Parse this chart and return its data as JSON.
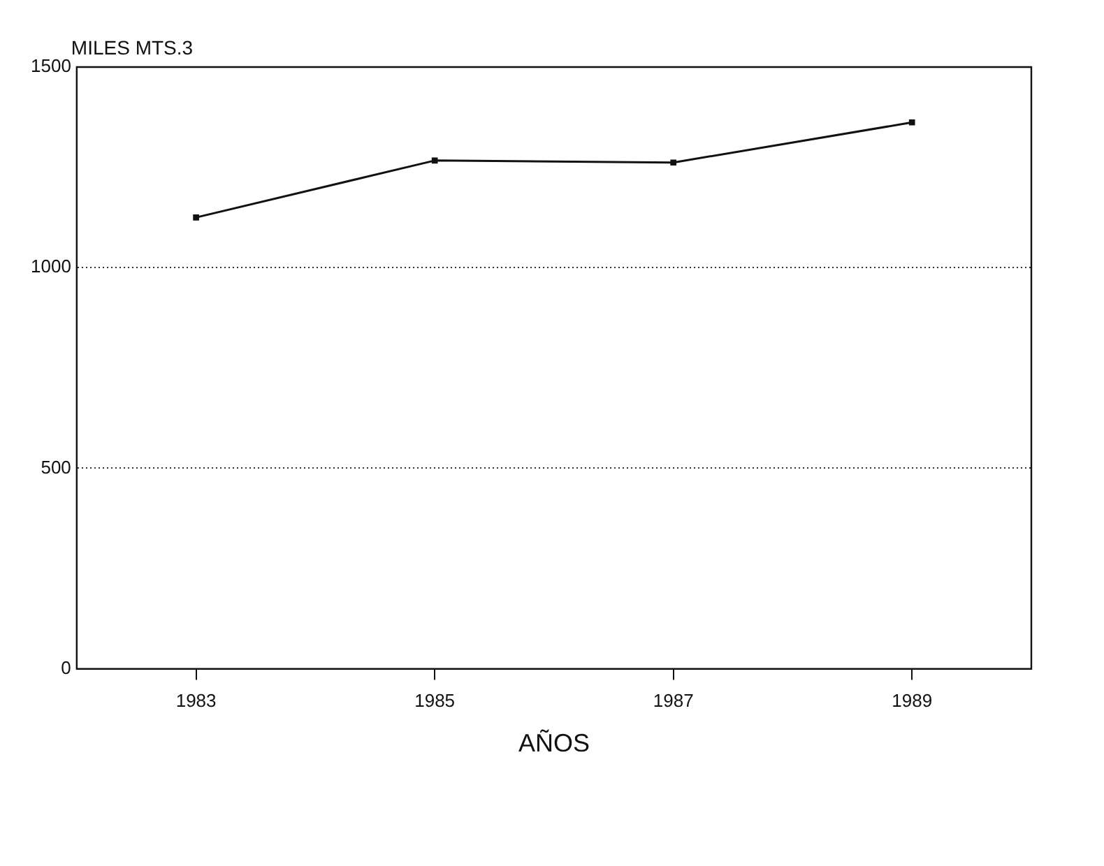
{
  "chart_data": {
    "type": "line",
    "xlabel": "AÑOS",
    "ylabel": "MILES MTS.3",
    "categories": [
      "1983",
      "1985",
      "1987",
      "1989"
    ],
    "series": [
      {
        "color": "#111111",
        "values": [
          1125,
          1267,
          1262,
          1362
        ]
      }
    ],
    "ylim": [
      0,
      1500
    ],
    "yticks": [
      0,
      500,
      1000,
      1500
    ],
    "grid": "y",
    "legend": false,
    "marker": "square",
    "line_style": "solid"
  }
}
